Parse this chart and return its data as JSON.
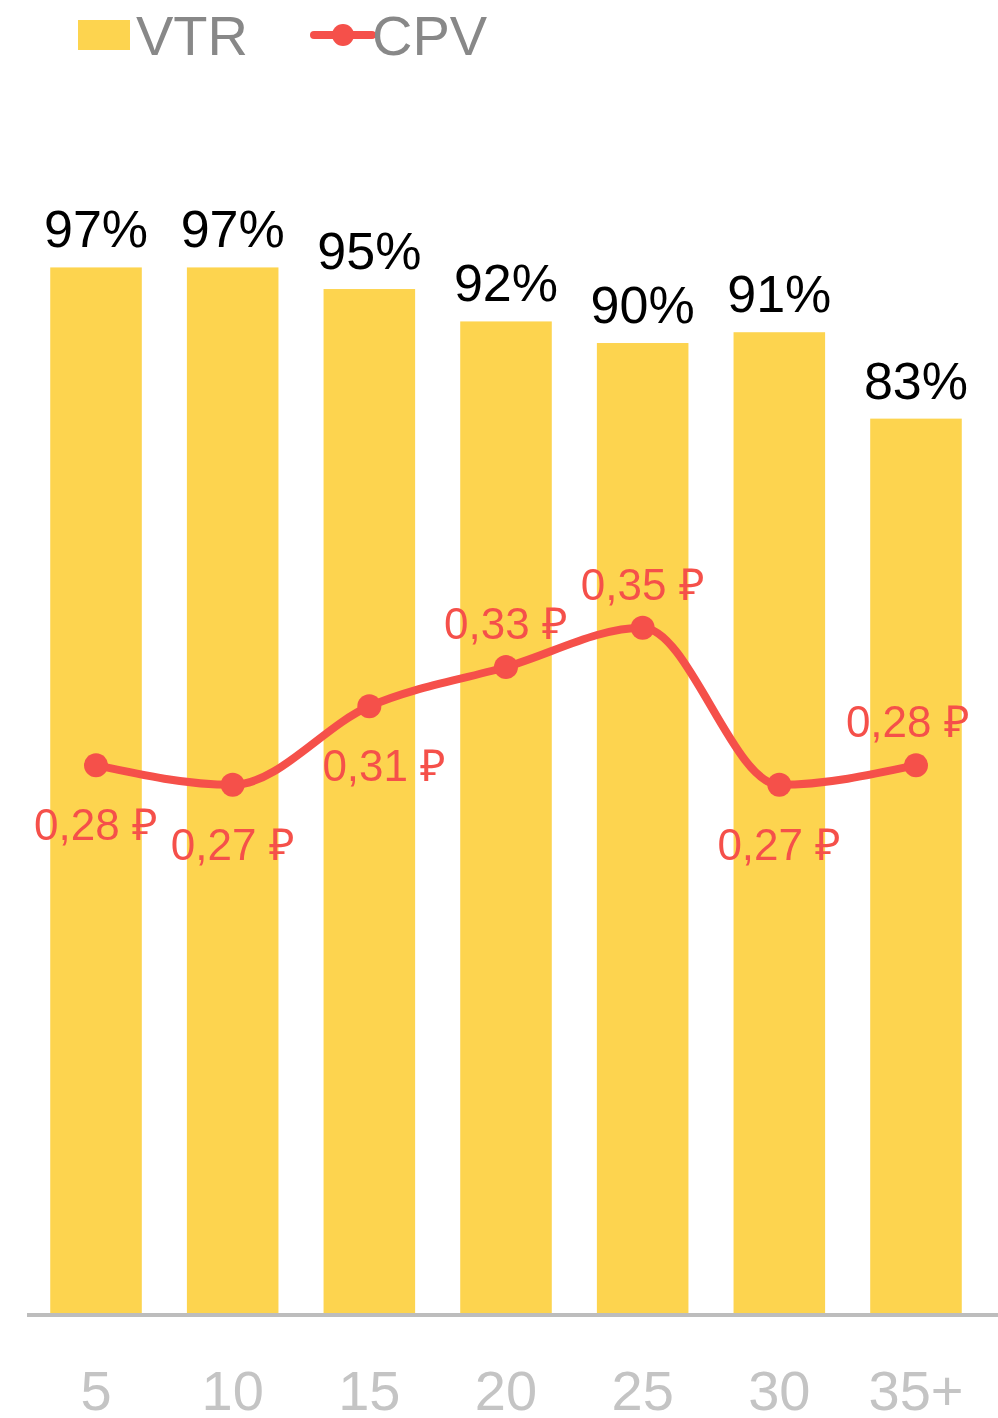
{
  "chart_data": {
    "type": "bar",
    "categories": [
      "5",
      "10",
      "15",
      "20",
      "25",
      "30",
      "35+"
    ],
    "series": [
      {
        "name": "VTR",
        "color": "#fdd44f",
        "values": [
          97,
          97,
          95,
          92,
          90,
          91,
          83
        ],
        "value_labels": [
          "97%",
          "97%",
          "95%",
          "92%",
          "90%",
          "91%",
          "83%"
        ]
      },
      {
        "name": "CPV",
        "type": "line",
        "axis": "y2",
        "color": "#f5504a",
        "marker": "circle",
        "values": [
          0.28,
          0.27,
          0.31,
          0.33,
          0.35,
          0.27,
          0.28
        ],
        "value_labels": [
          "0,28 ₽",
          "0,27 ₽",
          "0,31 ₽",
          "0,33 ₽",
          "0,35 ₽",
          "0,27 ₽",
          "0,28 ₽"
        ]
      }
    ],
    "tick_labels": "x",
    "legend": "top left"
  }
}
